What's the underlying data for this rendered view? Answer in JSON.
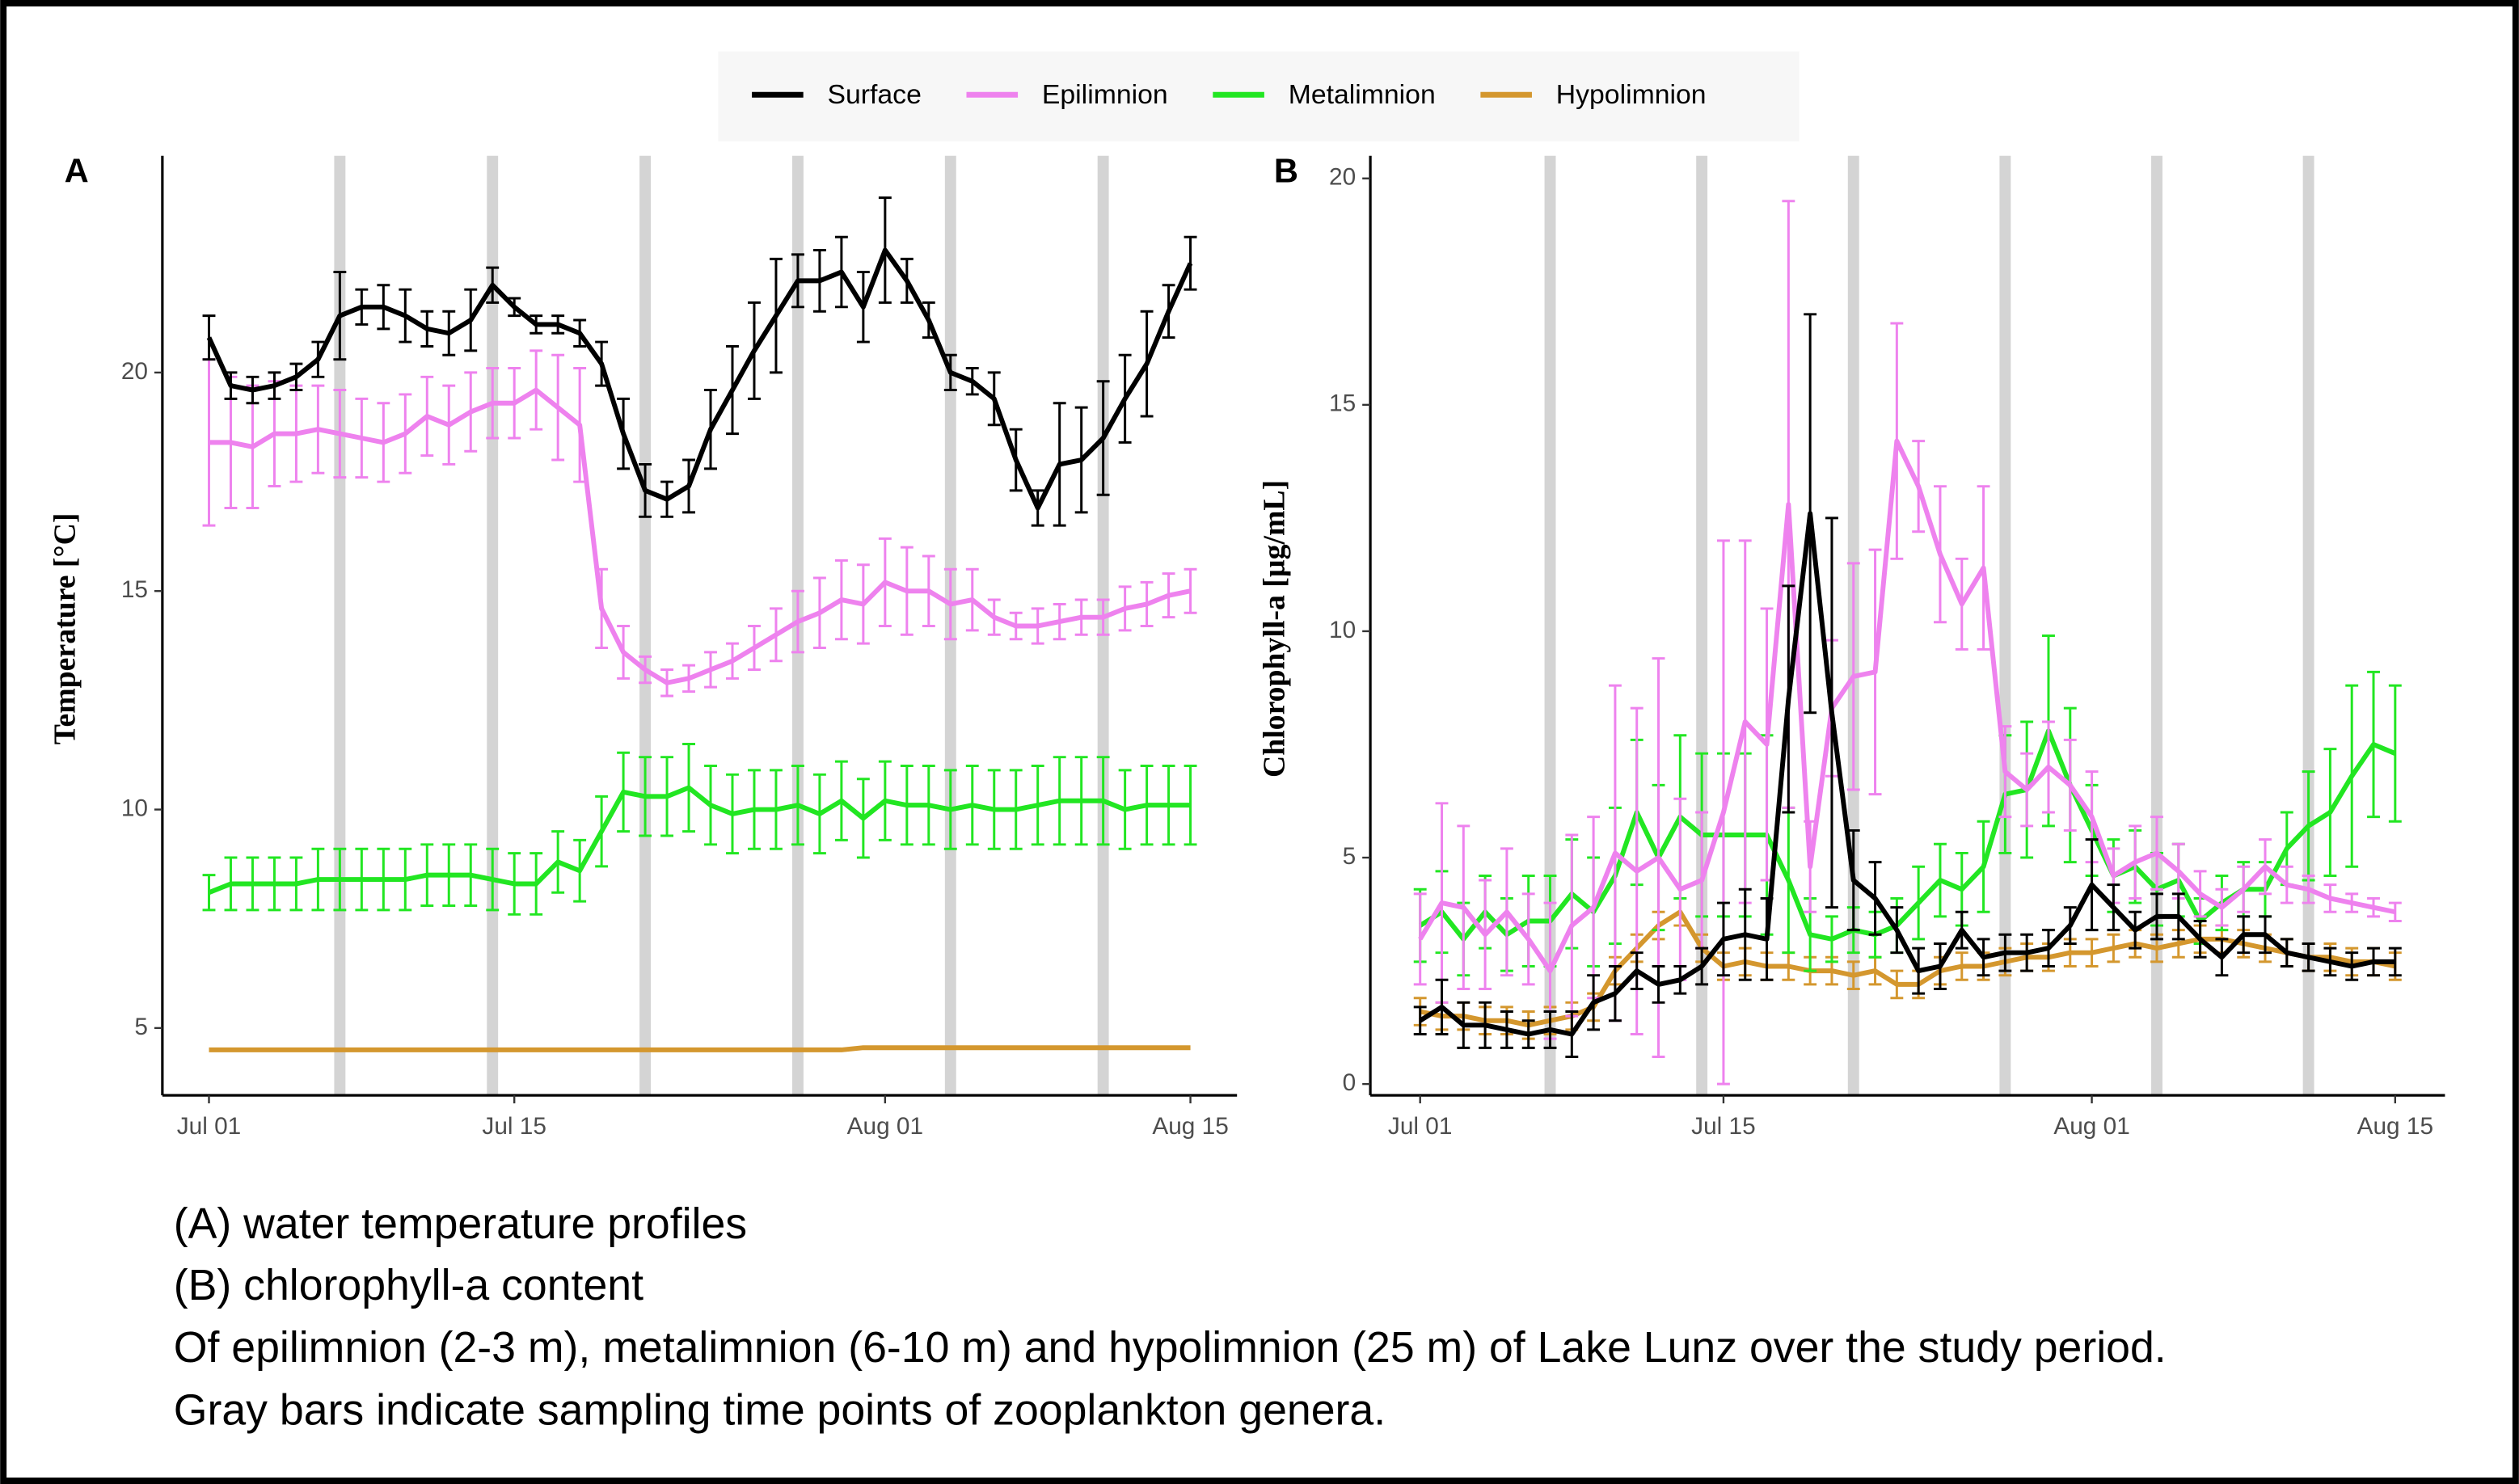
{
  "chart_data": [
    {
      "type": "line",
      "panel_label": "A",
      "ylabel": "Temperature [°C]",
      "x": [
        "Jul 01",
        "Jul 02",
        "Jul 03",
        "Jul 04",
        "Jul 05",
        "Jul 06",
        "Jul 07",
        "Jul 08",
        "Jul 09",
        "Jul 10",
        "Jul 11",
        "Jul 12",
        "Jul 13",
        "Jul 14",
        "Jul 15",
        "Jul 16",
        "Jul 17",
        "Jul 18",
        "Jul 19",
        "Jul 20",
        "Jul 21",
        "Jul 22",
        "Jul 23",
        "Jul 24",
        "Jul 25",
        "Jul 26",
        "Jul 27",
        "Jul 28",
        "Jul 29",
        "Jul 30",
        "Jul 31",
        "Aug 01",
        "Aug 02",
        "Aug 03",
        "Aug 04",
        "Aug 05",
        "Aug 06",
        "Aug 07",
        "Aug 08",
        "Aug 09",
        "Aug 10",
        "Aug 11",
        "Aug 12",
        "Aug 13",
        "Aug 14",
        "Aug 15"
      ],
      "xticks": [
        "Jul 01",
        "Jul 15",
        "Aug 01",
        "Aug 15"
      ],
      "ylim": [
        3.46,
        24.96
      ],
      "yticks": [
        5,
        10,
        15,
        20
      ],
      "sampling_dates": [
        "Jul 07",
        "Jul 14",
        "Jul 21",
        "Jul 28",
        "Aug 04",
        "Aug 11"
      ],
      "series": [
        {
          "name": "Surface",
          "color": "#000000",
          "values": [
            20.8,
            19.7,
            19.6,
            19.7,
            19.9,
            20.3,
            21.3,
            21.5,
            21.5,
            21.3,
            21.0,
            20.9,
            21.2,
            22.0,
            21.5,
            21.1,
            21.1,
            20.9,
            20.2,
            18.6,
            17.3,
            17.1,
            17.4,
            18.7,
            19.6,
            20.5,
            21.3,
            22.1,
            22.1,
            22.3,
            21.5,
            22.8,
            22.1,
            21.2,
            20.0,
            19.8,
            19.4,
            18.0,
            16.9,
            17.9,
            18.0,
            18.5,
            19.4,
            20.2,
            21.4,
            22.5
          ],
          "errors": [
            0.5,
            0.3,
            0.3,
            0.3,
            0.3,
            0.4,
            1.0,
            0.4,
            0.5,
            0.6,
            0.4,
            0.5,
            0.7,
            0.4,
            0.2,
            0.2,
            0.2,
            0.3,
            0.5,
            0.8,
            0.6,
            0.4,
            0.6,
            0.9,
            1.0,
            1.1,
            1.3,
            0.6,
            0.7,
            0.8,
            0.8,
            1.2,
            0.5,
            0.4,
            0.4,
            0.3,
            0.6,
            0.7,
            0.4,
            1.4,
            1.2,
            1.3,
            1.0,
            1.2,
            0.6,
            0.6
          ]
        },
        {
          "name": "Epilimnion",
          "color": "#ee82ee",
          "values": [
            18.4,
            18.4,
            18.3,
            18.6,
            18.6,
            18.7,
            18.6,
            18.5,
            18.4,
            18.6,
            19.0,
            18.8,
            19.1,
            19.3,
            19.3,
            19.6,
            19.2,
            18.8,
            14.6,
            13.6,
            13.2,
            12.9,
            13.0,
            13.2,
            13.4,
            13.7,
            14.0,
            14.3,
            14.5,
            14.8,
            14.7,
            15.2,
            15.0,
            15.0,
            14.7,
            14.8,
            14.4,
            14.2,
            14.2,
            14.3,
            14.4,
            14.4,
            14.6,
            14.7,
            14.9,
            15.0
          ],
          "errors": [
            1.9,
            1.5,
            1.4,
            1.2,
            1.1,
            1.0,
            1.0,
            0.9,
            0.9,
            0.9,
            0.9,
            0.9,
            0.9,
            0.8,
            0.8,
            0.9,
            1.2,
            1.3,
            0.9,
            0.6,
            0.3,
            0.3,
            0.3,
            0.4,
            0.4,
            0.5,
            0.6,
            0.7,
            0.8,
            0.9,
            0.9,
            1.0,
            1.0,
            0.8,
            0.8,
            0.7,
            0.4,
            0.3,
            0.4,
            0.4,
            0.4,
            0.4,
            0.5,
            0.5,
            0.5,
            0.5
          ]
        },
        {
          "name": "Metalimnion",
          "color": "#22e622",
          "values": [
            8.1,
            8.3,
            8.3,
            8.3,
            8.3,
            8.4,
            8.4,
            8.4,
            8.4,
            8.4,
            8.5,
            8.5,
            8.5,
            8.4,
            8.3,
            8.3,
            8.8,
            8.6,
            9.5,
            10.4,
            10.3,
            10.3,
            10.5,
            10.1,
            9.9,
            10.0,
            10.0,
            10.1,
            9.9,
            10.2,
            9.8,
            10.2,
            10.1,
            10.1,
            10.0,
            10.1,
            10.0,
            10.0,
            10.1,
            10.2,
            10.2,
            10.2,
            10.0,
            10.1,
            10.1,
            10.1
          ],
          "errors": [
            0.4,
            0.6,
            0.6,
            0.6,
            0.6,
            0.7,
            0.7,
            0.7,
            0.7,
            0.7,
            0.7,
            0.7,
            0.7,
            0.7,
            0.7,
            0.7,
            0.7,
            0.7,
            0.8,
            0.9,
            0.9,
            0.9,
            1.0,
            0.9,
            0.9,
            0.9,
            0.9,
            0.9,
            0.9,
            0.9,
            0.9,
            0.9,
            0.9,
            0.9,
            0.9,
            0.9,
            0.9,
            0.9,
            0.9,
            1.0,
            1.0,
            1.0,
            0.9,
            0.9,
            0.9,
            0.9
          ]
        },
        {
          "name": "Hypolimnion",
          "color": "#d4972e",
          "values": [
            4.5,
            4.5,
            4.5,
            4.5,
            4.5,
            4.5,
            4.5,
            4.5,
            4.5,
            4.5,
            4.5,
            4.5,
            4.5,
            4.5,
            4.5,
            4.5,
            4.5,
            4.5,
            4.5,
            4.5,
            4.5,
            4.5,
            4.5,
            4.5,
            4.5,
            4.5,
            4.5,
            4.5,
            4.5,
            4.5,
            4.55,
            4.55,
            4.55,
            4.55,
            4.55,
            4.55,
            4.55,
            4.55,
            4.55,
            4.55,
            4.55,
            4.55,
            4.55,
            4.55,
            4.55,
            4.55
          ]
        }
      ]
    },
    {
      "type": "line",
      "panel_label": "B",
      "ylabel": "Chlorophyll-a [µg/mL]",
      "x": [
        "Jul 01",
        "Jul 02",
        "Jul 03",
        "Jul 04",
        "Jul 05",
        "Jul 06",
        "Jul 07",
        "Jul 08",
        "Jul 09",
        "Jul 10",
        "Jul 11",
        "Jul 12",
        "Jul 13",
        "Jul 14",
        "Jul 15",
        "Jul 16",
        "Jul 17",
        "Jul 18",
        "Jul 19",
        "Jul 20",
        "Jul 21",
        "Jul 22",
        "Jul 23",
        "Jul 24",
        "Jul 25",
        "Jul 26",
        "Jul 27",
        "Jul 28",
        "Jul 29",
        "Jul 30",
        "Jul 31",
        "Aug 01",
        "Aug 02",
        "Aug 03",
        "Aug 04",
        "Aug 05",
        "Aug 06",
        "Aug 07",
        "Aug 08",
        "Aug 09",
        "Aug 10",
        "Aug 11",
        "Aug 12",
        "Aug 13",
        "Aug 14",
        "Aug 15"
      ],
      "xticks": [
        "Jul 01",
        "Jul 15",
        "Aug 01",
        "Aug 15"
      ],
      "ylim": [
        -0.25,
        20.5
      ],
      "yticks": [
        0,
        5,
        10,
        15,
        20
      ],
      "sampling_dates": [
        "Jul 07",
        "Jul 14",
        "Jul 21",
        "Jul 28",
        "Aug 04",
        "Aug 11"
      ],
      "series": [
        {
          "color": "#000000",
          "values": [
            1.4,
            1.7,
            1.3,
            1.3,
            1.2,
            1.1,
            1.2,
            1.1,
            1.8,
            2.0,
            2.5,
            2.2,
            2.3,
            2.6,
            3.2,
            3.3,
            3.2,
            8.5,
            12.6,
            8.2,
            4.5,
            4.1,
            3.4,
            2.5,
            2.6,
            3.4,
            2.8,
            2.9,
            2.9,
            3.0,
            3.5,
            4.4,
            3.9,
            3.4,
            3.7,
            3.7,
            3.2,
            2.8,
            3.3,
            3.3,
            2.9,
            2.8,
            2.7,
            2.6,
            2.7,
            2.7
          ],
          "errors": [
            0.3,
            0.6,
            0.5,
            0.5,
            0.4,
            0.3,
            0.4,
            0.5,
            0.6,
            0.6,
            0.4,
            0.4,
            0.3,
            0.4,
            0.8,
            1.0,
            0.9,
            2.5,
            4.4,
            4.3,
            1.1,
            0.8,
            0.5,
            0.5,
            0.5,
            0.4,
            0.4,
            0.4,
            0.4,
            0.4,
            0.4,
            1.0,
            0.5,
            0.4,
            0.5,
            0.5,
            0.4,
            0.4,
            0.4,
            0.4,
            0.3,
            0.3,
            0.3,
            0.3,
            0.3,
            0.3
          ]
        },
        {
          "color": "#ee82ee",
          "values": [
            3.2,
            4.0,
            3.9,
            3.3,
            3.8,
            3.2,
            2.5,
            3.5,
            3.9,
            5.1,
            4.7,
            5.0,
            4.3,
            4.5,
            6.0,
            8.0,
            7.5,
            12.8,
            4.8,
            8.3,
            9.0,
            9.1,
            14.2,
            13.2,
            11.7,
            10.6,
            11.4,
            6.9,
            6.5,
            7.0,
            6.6,
            5.9,
            4.6,
            4.9,
            5.1,
            4.7,
            4.2,
            3.9,
            4.3,
            4.8,
            4.4,
            4.3,
            4.1,
            4.0,
            3.9,
            3.8
          ],
          "errors": [
            1.0,
            2.2,
            1.8,
            1.2,
            1.4,
            1.0,
            1.5,
            2.0,
            2.0,
            3.7,
            3.6,
            4.4,
            2.0,
            1.5,
            6.0,
            4.0,
            3.0,
            6.7,
            1.0,
            1.5,
            2.5,
            2.7,
            2.6,
            1.0,
            1.5,
            1.0,
            1.8,
            1.0,
            0.8,
            1.0,
            1.0,
            1.0,
            0.6,
            0.8,
            0.8,
            0.6,
            0.5,
            0.4,
            0.5,
            0.6,
            0.4,
            0.3,
            0.3,
            0.2,
            0.2,
            0.2
          ]
        },
        {
          "color": "#22e622",
          "values": [
            3.5,
            3.8,
            3.2,
            3.8,
            3.3,
            3.6,
            3.6,
            4.2,
            3.8,
            4.6,
            6.0,
            5.0,
            5.9,
            5.5,
            5.5,
            5.5,
            5.5,
            4.5,
            3.3,
            3.2,
            3.4,
            3.3,
            3.5,
            4.0,
            4.5,
            4.3,
            4.8,
            6.4,
            6.5,
            7.8,
            6.6,
            5.6,
            4.6,
            4.8,
            4.3,
            4.5,
            3.6,
            4.0,
            4.3,
            4.3,
            5.2,
            5.7,
            6.0,
            6.8,
            7.5,
            7.3
          ],
          "errors": [
            0.8,
            0.9,
            0.8,
            0.8,
            0.8,
            1.0,
            1.0,
            1.2,
            1.2,
            1.5,
            1.6,
            1.6,
            1.8,
            1.8,
            1.8,
            1.8,
            2.2,
            1.6,
            0.8,
            0.5,
            0.5,
            0.5,
            0.6,
            0.8,
            0.8,
            0.8,
            1.0,
            1.3,
            1.5,
            2.1,
            1.7,
            1.0,
            0.8,
            0.8,
            0.8,
            0.8,
            0.5,
            0.6,
            0.6,
            0.6,
            0.8,
            1.2,
            1.4,
            2.0,
            1.6,
            1.5
          ]
        },
        {
          "color": "#d4972e",
          "values": [
            1.6,
            1.5,
            1.5,
            1.4,
            1.4,
            1.3,
            1.4,
            1.5,
            1.7,
            2.5,
            3.0,
            3.5,
            3.8,
            3.0,
            2.6,
            2.7,
            2.6,
            2.6,
            2.5,
            2.5,
            2.4,
            2.5,
            2.2,
            2.2,
            2.5,
            2.6,
            2.6,
            2.7,
            2.8,
            2.8,
            2.9,
            2.9,
            3.0,
            3.1,
            3.0,
            3.1,
            3.2,
            3.2,
            3.1,
            3.0,
            2.9,
            2.8,
            2.8,
            2.7,
            2.7,
            2.6
          ],
          "errors": [
            0.3,
            0.3,
            0.3,
            0.3,
            0.3,
            0.3,
            0.3,
            0.3,
            0.3,
            0.3,
            0.3,
            0.3,
            0.3,
            0.3,
            0.3,
            0.3,
            0.3,
            0.3,
            0.3,
            0.3,
            0.3,
            0.3,
            0.3,
            0.3,
            0.3,
            0.3,
            0.3,
            0.3,
            0.3,
            0.3,
            0.3,
            0.3,
            0.3,
            0.3,
            0.3,
            0.3,
            0.3,
            0.3,
            0.3,
            0.3,
            0.3,
            0.3,
            0.3,
            0.3,
            0.3,
            0.3
          ]
        }
      ]
    }
  ],
  "caption": [
    "(A) water temperature profiles",
    "(B) chlorophyll-a content",
    "Of epilimnion (2-3 m), metalimnion (6-10 m) and hypolimnion (25 m) of Lake Lunz over the study period.",
    "Gray bars indicate sampling time points of zooplankton genera."
  ]
}
